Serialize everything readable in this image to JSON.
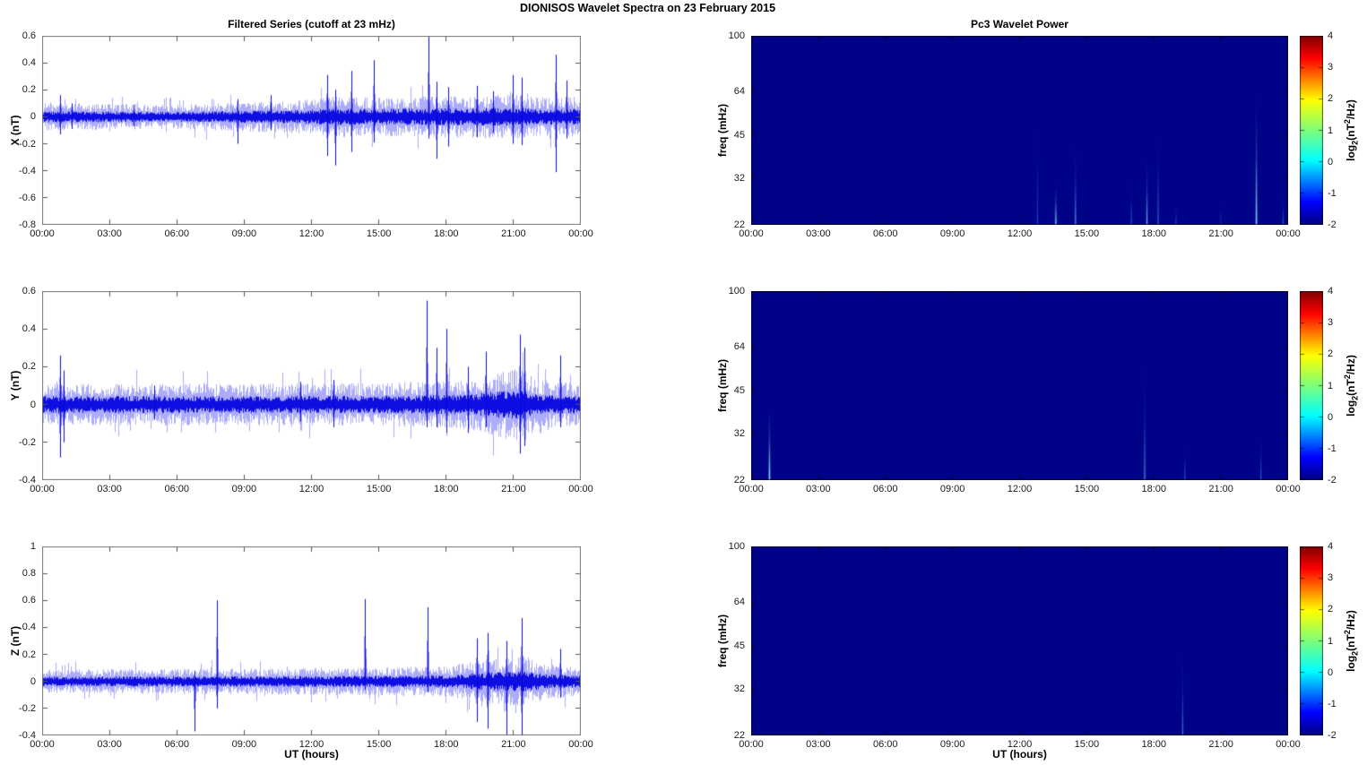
{
  "figure": {
    "title": "DIONISOS Wavelet Spectra on 23 February  2015",
    "left_title": "Filtered Series (cutoff at 23 mHz)",
    "right_title": "Pc3 Wavelet Power",
    "xlabel": "UT (hours)",
    "freq_label": "freq (mHz)",
    "xtick_labels": [
      "00:00",
      "03:00",
      "06:00",
      "09:00",
      "12:00",
      "15:00",
      "18:00",
      "21:00",
      "00:00"
    ],
    "line_color": "#0000e0",
    "spectrogram_bg": "#000287",
    "colorbar": {
      "label_parts": {
        "p1": "log",
        "sub": "2",
        "p2": "(nT",
        "sup": "2",
        "p3": "/Hz)"
      },
      "ticks": [
        "4",
        "3",
        "2",
        "1",
        "0",
        "-1",
        "-2"
      ],
      "range": [
        -2,
        4
      ],
      "colormap": "jet",
      "jet_stops": [
        [
          0,
          "#000080"
        ],
        [
          0.12,
          "#0000ff"
        ],
        [
          0.34,
          "#00ffff"
        ],
        [
          0.5,
          "#7dff7a"
        ],
        [
          0.66,
          "#ffff00"
        ],
        [
          0.88,
          "#ff0000"
        ],
        [
          1,
          "#800000"
        ]
      ]
    }
  },
  "chart_data": [
    {
      "id": "ts-x",
      "type": "line",
      "row": 0,
      "col": "left",
      "title": "Filtered Series (cutoff at 23 mHz)",
      "ylabel": "X (nT)",
      "ylim": [
        -0.8,
        0.6
      ],
      "ytick_labels": [
        "0.6",
        "0.4",
        "0.2",
        "0",
        "-0.2",
        "-0.4",
        "-0.6",
        "-0.8"
      ],
      "x_range_hours": [
        0,
        24
      ],
      "noise_envelope": [
        [
          0,
          0.045
        ],
        [
          6,
          0.042
        ],
        [
          9,
          0.05
        ],
        [
          12,
          0.058
        ],
        [
          13,
          0.07
        ],
        [
          15,
          0.065
        ],
        [
          18,
          0.07
        ],
        [
          21,
          0.075
        ],
        [
          22.5,
          0.065
        ],
        [
          24,
          0.068
        ]
      ],
      "spikes": [
        [
          0.8,
          0.16,
          -0.13
        ],
        [
          1.3,
          0.1,
          -0.09
        ],
        [
          4.1,
          0.09,
          -0.07
        ],
        [
          8.7,
          0.13,
          -0.2
        ],
        [
          10.2,
          0.16,
          -0.1
        ],
        [
          12.7,
          0.31,
          -0.29
        ],
        [
          13.1,
          0.2,
          -0.36
        ],
        [
          13.8,
          0.34,
          -0.26
        ],
        [
          14.8,
          0.42,
          -0.19
        ],
        [
          17.25,
          0.6,
          -0.16
        ],
        [
          17.6,
          0.26,
          -0.31
        ],
        [
          18.1,
          0.22,
          -0.22
        ],
        [
          19.4,
          0.23,
          -0.15
        ],
        [
          20.1,
          0.19,
          -0.12
        ],
        [
          21.0,
          0.31,
          -0.2
        ],
        [
          21.4,
          0.29,
          -0.21
        ],
        [
          22.9,
          0.46,
          -0.41
        ],
        [
          23.4,
          0.27,
          -0.16
        ]
      ]
    },
    {
      "id": "ts-y",
      "type": "line",
      "row": 1,
      "col": "left",
      "ylabel": "Y (nT)",
      "ylim": [
        -0.4,
        0.6
      ],
      "ytick_labels": [
        "0.6",
        "0.4",
        "0.2",
        "0",
        "-0.2",
        "-0.4"
      ],
      "x_range_hours": [
        0,
        24
      ],
      "noise_envelope": [
        [
          0,
          0.05
        ],
        [
          12,
          0.05
        ],
        [
          17,
          0.055
        ],
        [
          19,
          0.06
        ],
        [
          20.5,
          0.08
        ],
        [
          21.5,
          0.09
        ],
        [
          22,
          0.06
        ],
        [
          24,
          0.05
        ]
      ],
      "spikes": [
        [
          0.8,
          0.26,
          -0.28
        ],
        [
          0.95,
          0.18,
          -0.2
        ],
        [
          5.0,
          0.1,
          -0.08
        ],
        [
          11.5,
          0.12,
          -0.09
        ],
        [
          13.0,
          0.13,
          -0.12
        ],
        [
          17.15,
          0.55,
          -0.12
        ],
        [
          17.6,
          0.3,
          -0.12
        ],
        [
          18.05,
          0.4,
          -0.15
        ],
        [
          19.0,
          0.2,
          -0.15
        ],
        [
          19.8,
          0.28,
          -0.12
        ],
        [
          21.3,
          0.37,
          -0.26
        ],
        [
          21.5,
          0.3,
          -0.22
        ],
        [
          23.1,
          0.26,
          -0.12
        ]
      ]
    },
    {
      "id": "ts-z",
      "type": "line",
      "row": 2,
      "col": "left",
      "ylabel": "Z (nT)",
      "ylim": [
        -0.4,
        1
      ],
      "ytick_labels": [
        "1",
        "0.8",
        "0.6",
        "0.4",
        "0.2",
        "0",
        "-0.2",
        "-0.4"
      ],
      "x_range_hours": [
        0,
        24
      ],
      "noise_envelope": [
        [
          0,
          0.04
        ],
        [
          12,
          0.045
        ],
        [
          18,
          0.05
        ],
        [
          19,
          0.065
        ],
        [
          20,
          0.075
        ],
        [
          21.5,
          0.085
        ],
        [
          22.5,
          0.06
        ],
        [
          24,
          0.05
        ]
      ],
      "spikes": [
        [
          6.8,
          0.08,
          -0.37
        ],
        [
          7.8,
          0.6,
          -0.2
        ],
        [
          14.4,
          0.61,
          -0.06
        ],
        [
          17.2,
          0.55,
          -0.08
        ],
        [
          19.4,
          0.32,
          -0.3
        ],
        [
          19.9,
          0.36,
          -0.35
        ],
        [
          20.7,
          0.3,
          -0.4
        ],
        [
          21.4,
          0.47,
          -0.42
        ],
        [
          23.1,
          0.24,
          -0.12
        ]
      ]
    },
    {
      "id": "spec-x",
      "type": "heatmap",
      "row": 0,
      "col": "right",
      "title": "Pc3 Wavelet Power",
      "ylabel": "freq (mHz)",
      "freq_range": [
        22,
        100
      ],
      "ytick_labels": [
        "100",
        "64",
        "45",
        "32",
        "22"
      ],
      "value_range": [
        -2,
        4
      ],
      "background_value": -2,
      "x_range_hours": [
        0,
        24
      ],
      "streaks": [
        [
          12.8,
          70,
          0.2
        ],
        [
          13.62,
          32,
          0.85
        ],
        [
          14.5,
          45,
          0.6
        ],
        [
          17.0,
          35,
          0.3
        ],
        [
          17.7,
          40,
          0.7
        ],
        [
          18.2,
          55,
          0.4
        ],
        [
          19.0,
          28,
          0.25
        ],
        [
          21.0,
          28,
          0.25
        ],
        [
          22.6,
          68,
          0.9
        ],
        [
          23.8,
          30,
          0.3
        ]
      ]
    },
    {
      "id": "spec-y",
      "type": "heatmap",
      "row": 1,
      "col": "right",
      "ylabel": "freq (mHz)",
      "freq_range": [
        22,
        100
      ],
      "ytick_labels": [
        "100",
        "64",
        "45",
        "32",
        "22"
      ],
      "value_range": [
        -2,
        4
      ],
      "background_value": -2,
      "x_range_hours": [
        0,
        24
      ],
      "streaks": [
        [
          0.8,
          42,
          0.95
        ],
        [
          17.6,
          60,
          0.55
        ],
        [
          19.4,
          32,
          0.3
        ],
        [
          22.8,
          35,
          0.35
        ]
      ]
    },
    {
      "id": "spec-z",
      "type": "heatmap",
      "row": 2,
      "col": "right",
      "ylabel": "freq (mHz)",
      "freq_range": [
        22,
        100
      ],
      "ytick_labels": [
        "100",
        "64",
        "45",
        "32",
        "22"
      ],
      "value_range": [
        -2,
        4
      ],
      "background_value": -2,
      "x_range_hours": [
        0,
        24
      ],
      "streaks": [
        [
          19.3,
          48,
          0.45
        ]
      ]
    }
  ]
}
